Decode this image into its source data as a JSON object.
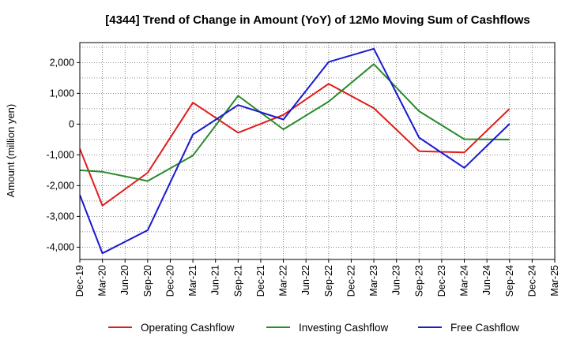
{
  "chart_data": {
    "type": "line",
    "title": "[4344]  Trend of Change in Amount (YoY) of 12Mo Moving Sum of Cashflows",
    "xlabel": "",
    "ylabel": "Amount (million yen)",
    "ylim": [
      -4400,
      2650
    ],
    "yticks": [
      -4000,
      -3000,
      -2000,
      -1000,
      0,
      1000,
      2000
    ],
    "ytick_labels": [
      "-4,000",
      "-3,000",
      "-2,000",
      "-1,000",
      "0",
      "1,000",
      "2,000"
    ],
    "categories": [
      "Dec-19",
      "Mar-20",
      "Jun-20",
      "Sep-20",
      "Dec-20",
      "Mar-21",
      "Jun-21",
      "Sep-21",
      "Dec-21",
      "Mar-22",
      "Jun-22",
      "Sep-22",
      "Dec-22",
      "Mar-23",
      "Jun-23",
      "Sep-23",
      "Dec-23",
      "Mar-24",
      "Jun-24",
      "Sep-24",
      "Dec-24",
      "Mar-25"
    ],
    "extra_tick_label": "Mar-25",
    "grid": true,
    "legend_position": "bottom",
    "series": [
      {
        "name": "Operating Cashflow",
        "color": "#e01b1b",
        "values": [
          -800,
          -2650,
          null,
          -1580,
          null,
          700,
          null,
          -280,
          null,
          300,
          null,
          1310,
          null,
          520,
          null,
          -880,
          null,
          -920,
          null,
          500,
          null,
          null
        ]
      },
      {
        "name": "Investing Cashflow",
        "color": "#2a8a2a",
        "values": [
          -1500,
          -1550,
          null,
          -1850,
          null,
          -1020,
          null,
          920,
          null,
          -170,
          null,
          730,
          null,
          1950,
          null,
          420,
          null,
          -490,
          null,
          -500,
          null,
          null
        ]
      },
      {
        "name": "Free Cashflow",
        "color": "#1a1ad0",
        "values": [
          -2300,
          -4200,
          null,
          -3450,
          null,
          -340,
          null,
          620,
          null,
          150,
          null,
          2020,
          null,
          2450,
          null,
          -440,
          null,
          -1420,
          null,
          10,
          null,
          null
        ]
      }
    ]
  }
}
